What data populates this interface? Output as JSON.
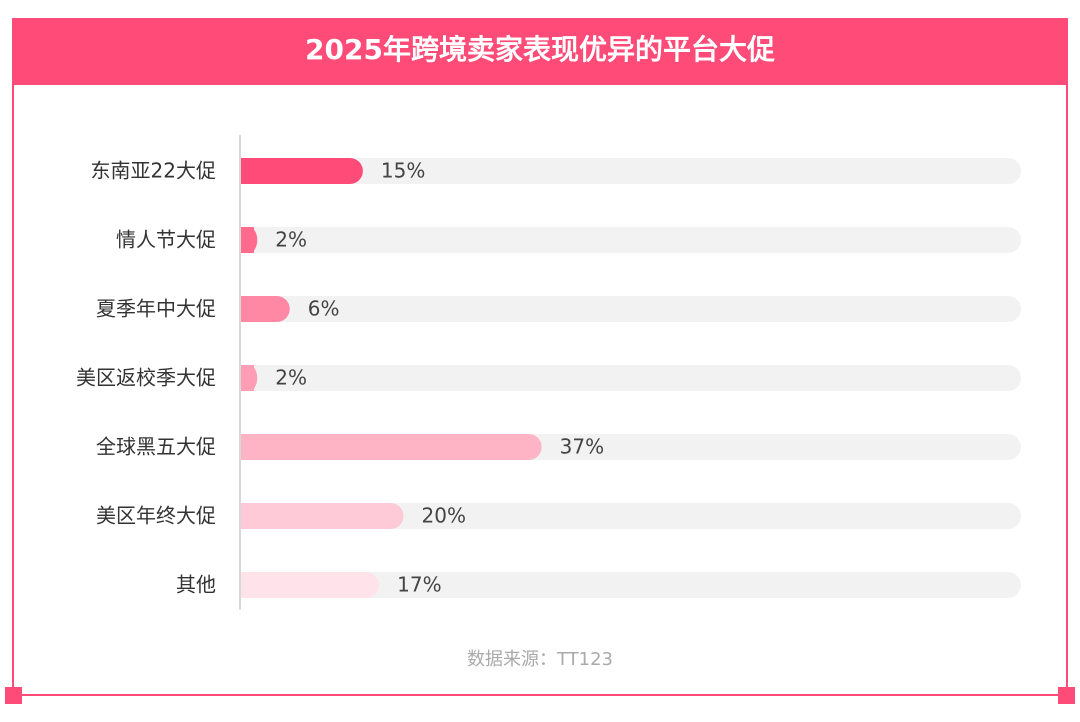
{
  "chart_data": {
    "type": "bar",
    "orientation": "horizontal",
    "title": "2025年跨境卖家表现优异的平台大促",
    "categories": [
      "东南亚22大促",
      "情人节大促",
      "夏季年中大促",
      "美区返校季大促",
      "全球黑五大促",
      "美区年终大促",
      "其他"
    ],
    "values": [
      15,
      2,
      6,
      2,
      37,
      20,
      17
    ],
    "value_labels": [
      "15%",
      "2%",
      "6%",
      "2%",
      "37%",
      "20%",
      "17%"
    ],
    "colors": [
      "#ff4b77",
      "#ff6a8d",
      "#ff88a4",
      "#ff9db4",
      "#ffb4c6",
      "#ffcad7",
      "#ffe2ea"
    ],
    "xlim": [
      0,
      96
    ],
    "source": "数据来源：TT123"
  }
}
